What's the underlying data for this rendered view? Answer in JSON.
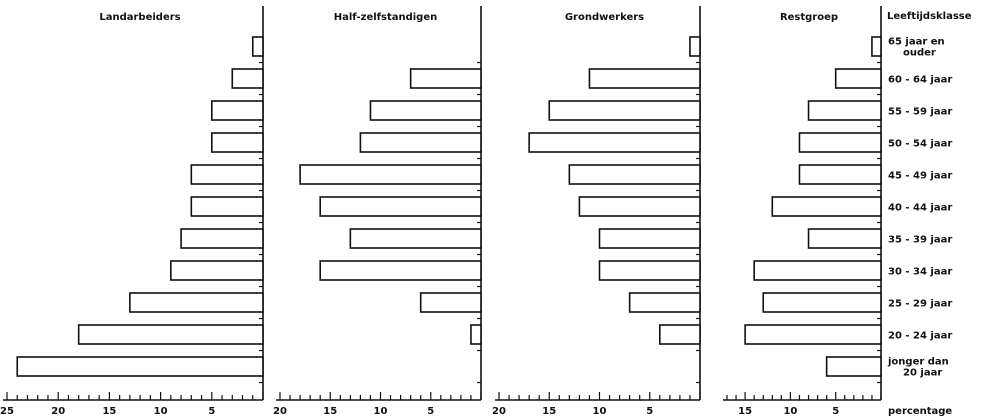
{
  "chart_data": {
    "type": "bar",
    "orientation": "horizontal",
    "x_axis_label": "percentage",
    "category_header": "Leeftijdsklasse",
    "categories": [
      [
        "65 jaar en",
        "ouder"
      ],
      [
        "60 - 64 jaar"
      ],
      [
        "55 - 59 jaar"
      ],
      [
        "50 - 54 jaar"
      ],
      [
        "45 - 49 jaar"
      ],
      [
        "40 - 44 jaar"
      ],
      [
        "35 - 39 jaar"
      ],
      [
        "30 - 34 jaar"
      ],
      [
        "25 - 29 jaar"
      ],
      [
        "20 - 24 jaar"
      ],
      [
        "jonger dan",
        "20 jaar"
      ]
    ],
    "panels": [
      {
        "title": "Landarbeiders",
        "xlim": [
          0,
          25
        ],
        "ticks": [
          25,
          20,
          15,
          10,
          5
        ],
        "values": [
          1,
          3,
          5,
          5,
          7,
          7,
          8,
          9,
          13,
          18,
          24
        ]
      },
      {
        "title": "Half-zelfstandigen",
        "xlim": [
          0,
          20
        ],
        "ticks": [
          20,
          15,
          10,
          5
        ],
        "values": [
          0,
          7,
          11,
          12,
          18,
          16,
          13,
          16,
          6,
          1,
          0
        ]
      },
      {
        "title": "Grondwerkers",
        "xlim": [
          0,
          20
        ],
        "ticks": [
          20,
          15,
          10,
          5
        ],
        "values": [
          1,
          11,
          15,
          17,
          13,
          12,
          10,
          10,
          7,
          4,
          0
        ]
      },
      {
        "title": "Restgroep",
        "xlim": [
          0,
          17
        ],
        "ticks": [
          15,
          10,
          5
        ],
        "values": [
          1,
          5,
          8,
          9,
          9,
          12,
          8,
          14,
          13,
          15,
          6
        ]
      }
    ]
  }
}
